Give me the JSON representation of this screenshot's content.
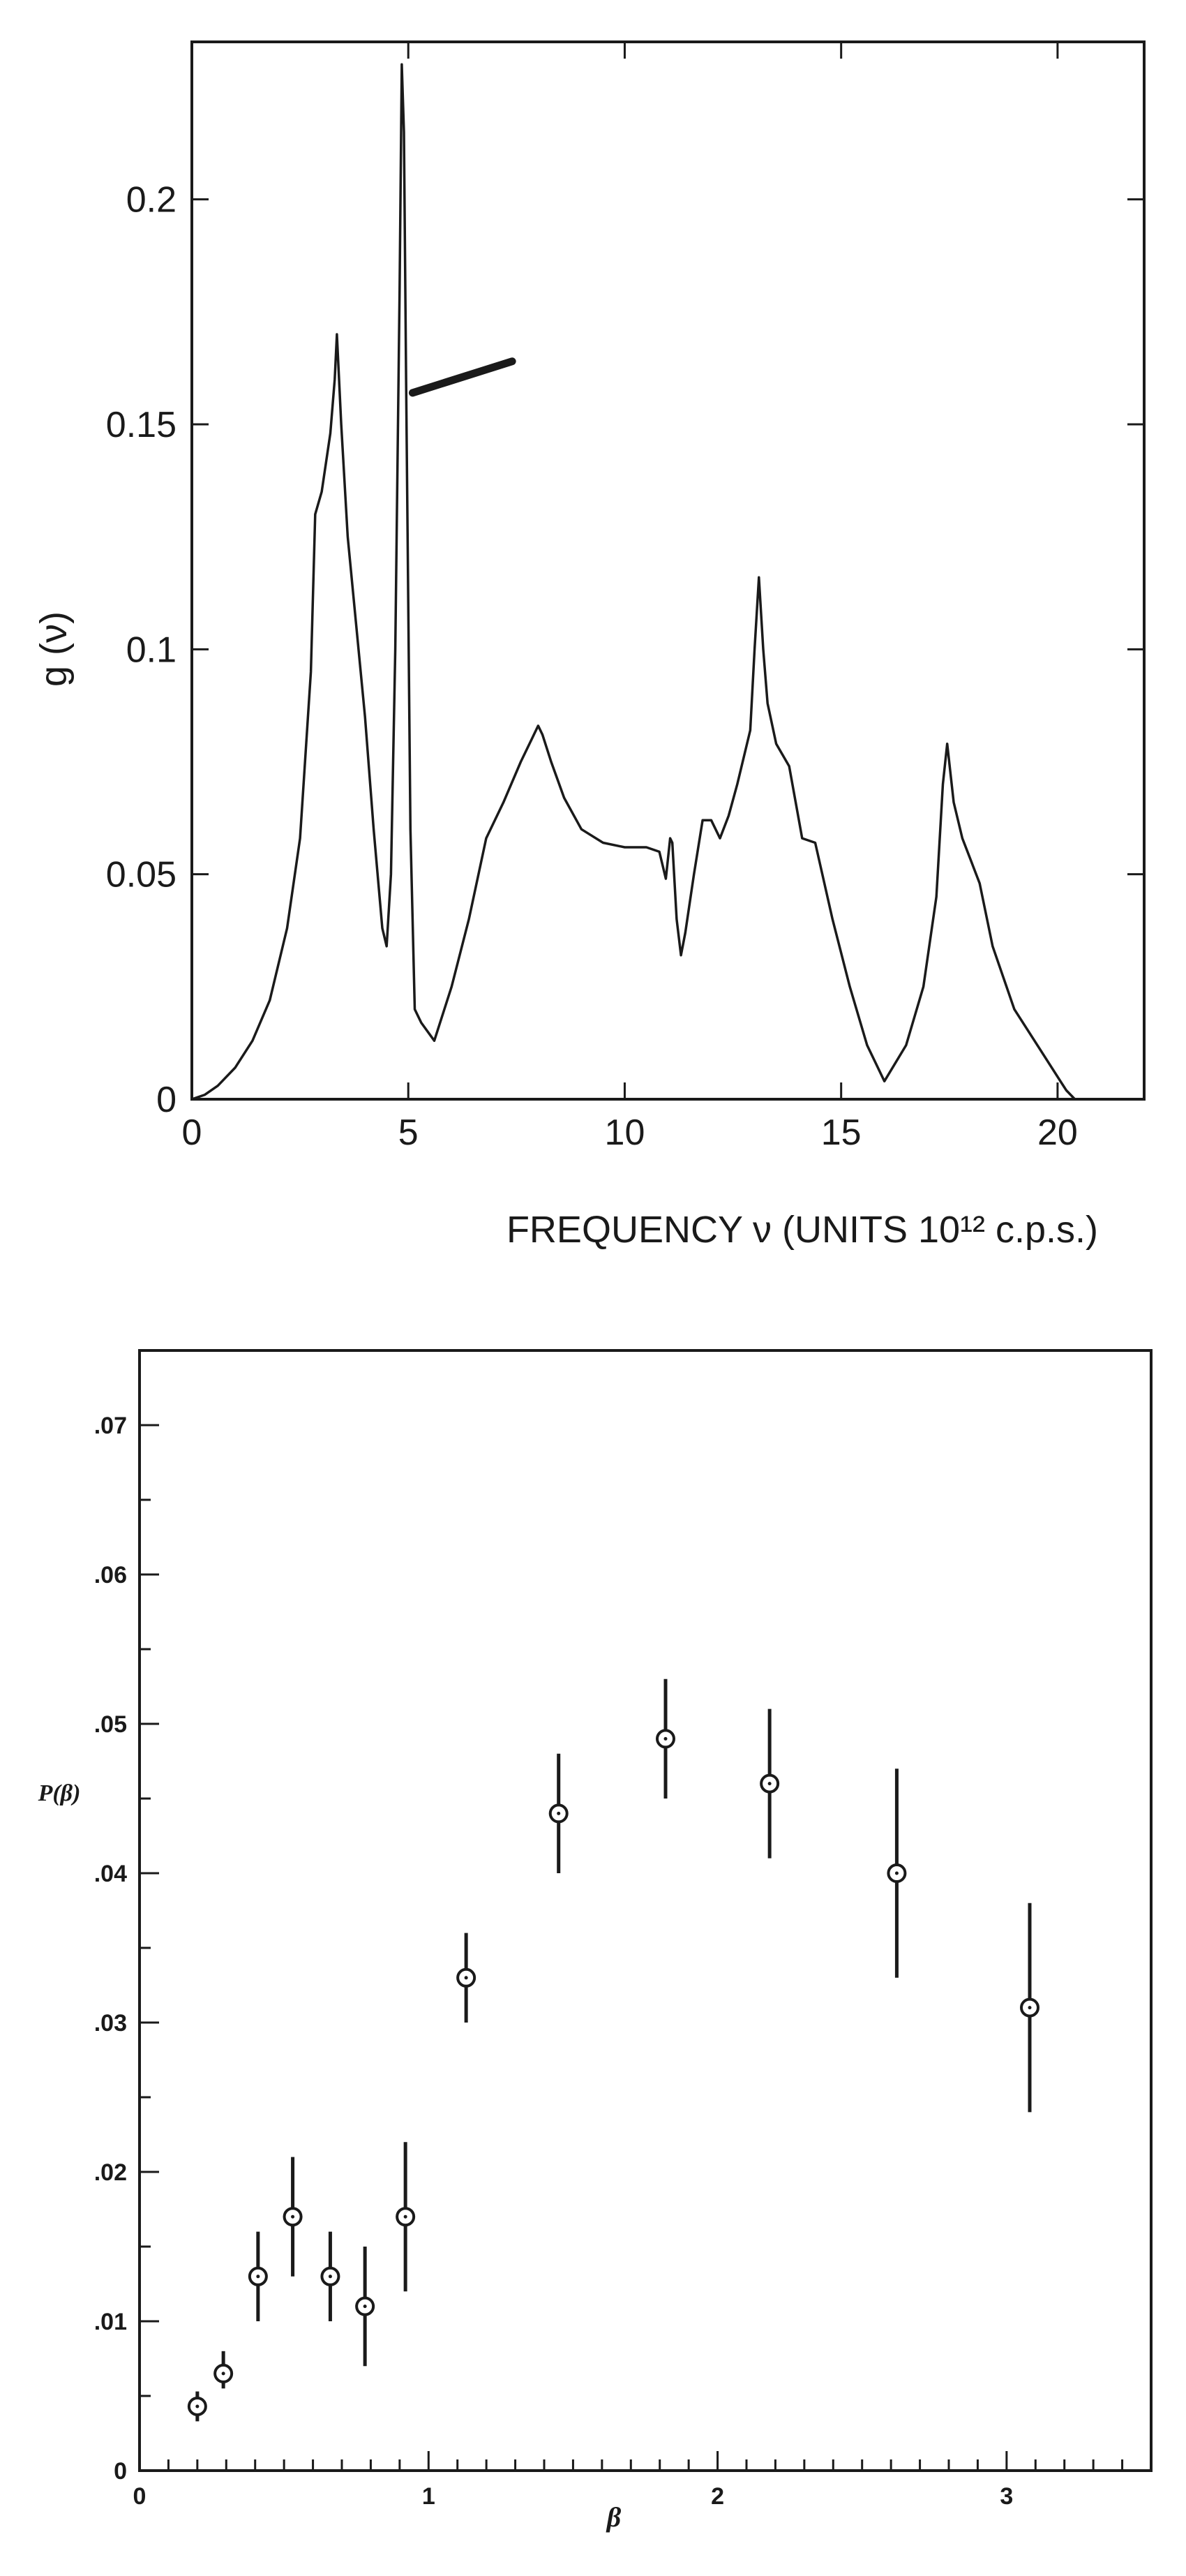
{
  "chart_data": [
    {
      "type": "line",
      "title": "",
      "xlabel": "FREQUENCY ν (UNITS 10¹² c.p.s.)",
      "ylabel": "g (ν)",
      "xlim": [
        0,
        22
      ],
      "ylim": [
        0,
        0.235
      ],
      "x_ticks": [
        "0",
        "5",
        "10",
        "15",
        "20"
      ],
      "y_ticks": [
        "0",
        "0.05",
        "0.1",
        "0.15",
        "0.2"
      ],
      "x_tick_values": [
        0,
        5,
        10,
        15,
        20
      ],
      "y_tick_values": [
        0,
        0.05,
        0.1,
        0.15,
        0.2
      ],
      "grid": false,
      "series": [
        {
          "x": [
            0,
            0.3,
            0.6,
            1.0,
            1.4,
            1.8,
            2.2,
            2.5,
            2.75,
            2.85,
            3.0,
            3.2,
            3.3,
            3.35,
            3.45,
            3.6,
            3.8,
            4.0,
            4.2,
            4.4,
            4.5,
            4.6,
            4.7,
            4.8,
            4.85,
            4.9,
            4.95,
            5.05,
            5.15,
            5.3,
            5.6,
            6.0,
            6.4,
            6.8,
            7.2,
            7.6,
            7.9,
            8.0,
            8.1,
            8.3,
            8.6,
            9.0,
            9.5,
            10.0,
            10.5,
            10.8,
            10.95,
            11.05,
            11.1,
            11.2,
            11.3,
            11.4,
            11.6,
            11.8,
            12.0,
            12.2,
            12.4,
            12.6,
            12.9,
            13.0,
            13.1,
            13.2,
            13.3,
            13.5,
            13.8,
            14.1,
            14.4,
            14.8,
            15.2,
            15.6,
            16.0,
            16.5,
            16.9,
            17.2,
            17.35,
            17.45,
            17.6,
            17.8,
            18.0,
            18.2,
            18.5,
            19.0,
            19.6,
            20.2,
            20.4
          ],
          "y": [
            0,
            0.001,
            0.003,
            0.007,
            0.013,
            0.022,
            0.038,
            0.058,
            0.095,
            0.13,
            0.135,
            0.148,
            0.16,
            0.17,
            0.15,
            0.125,
            0.105,
            0.085,
            0.06,
            0.038,
            0.034,
            0.05,
            0.1,
            0.18,
            0.23,
            0.215,
            0.16,
            0.06,
            0.02,
            0.017,
            0.013,
            0.025,
            0.04,
            0.058,
            0.066,
            0.075,
            0.081,
            0.083,
            0.081,
            0.075,
            0.067,
            0.06,
            0.057,
            0.056,
            0.056,
            0.055,
            0.049,
            0.058,
            0.057,
            0.04,
            0.032,
            0.037,
            0.05,
            0.062,
            0.062,
            0.058,
            0.063,
            0.07,
            0.082,
            0.1,
            0.116,
            0.1,
            0.088,
            0.079,
            0.074,
            0.058,
            0.057,
            0.04,
            0.025,
            0.012,
            0.004,
            0.012,
            0.025,
            0.045,
            0.07,
            0.079,
            0.066,
            0.058,
            0.053,
            0.048,
            0.034,
            0.02,
            0.011,
            0.002,
            0
          ]
        }
      ],
      "annotations": [
        {
          "type": "pointer-bar",
          "from": [
            5.1,
            0.157
          ],
          "to": [
            7.4,
            0.164
          ]
        }
      ]
    },
    {
      "type": "scatter",
      "title": "",
      "xlabel": "β",
      "ylabel": "P(β)",
      "xlim": [
        0,
        3.5
      ],
      "ylim": [
        0,
        0.075
      ],
      "x_ticks": [
        "0",
        "1",
        "2",
        "3"
      ],
      "y_ticks": [
        "0",
        ".01",
        ".02",
        ".03",
        ".04",
        ".05",
        ".06",
        ".07"
      ],
      "x_tick_values": [
        0,
        1,
        2,
        3
      ],
      "y_tick_values": [
        0,
        0.01,
        0.02,
        0.03,
        0.04,
        0.05,
        0.06,
        0.07
      ],
      "x_minor_step": 0.1,
      "y_minor_step": 0.005,
      "grid": false,
      "points": [
        {
          "x": 0.2,
          "y": 0.0043,
          "err_low": 0.0033,
          "err_high": 0.0053
        },
        {
          "x": 0.29,
          "y": 0.0065,
          "err_low": 0.0055,
          "err_high": 0.008
        },
        {
          "x": 0.41,
          "y": 0.013,
          "err_low": 0.01,
          "err_high": 0.016
        },
        {
          "x": 0.53,
          "y": 0.017,
          "err_low": 0.013,
          "err_high": 0.021
        },
        {
          "x": 0.66,
          "y": 0.013,
          "err_low": 0.01,
          "err_high": 0.016
        },
        {
          "x": 0.78,
          "y": 0.011,
          "err_low": 0.007,
          "err_high": 0.015
        },
        {
          "x": 0.92,
          "y": 0.017,
          "err_low": 0.012,
          "err_high": 0.022
        },
        {
          "x": 1.13,
          "y": 0.033,
          "err_low": 0.03,
          "err_high": 0.036
        },
        {
          "x": 1.45,
          "y": 0.044,
          "err_low": 0.04,
          "err_high": 0.048
        },
        {
          "x": 1.82,
          "y": 0.049,
          "err_low": 0.045,
          "err_high": 0.053
        },
        {
          "x": 2.18,
          "y": 0.046,
          "err_low": 0.041,
          "err_high": 0.051
        },
        {
          "x": 2.62,
          "y": 0.04,
          "err_low": 0.033,
          "err_high": 0.047
        },
        {
          "x": 3.08,
          "y": 0.031,
          "err_low": 0.024,
          "err_high": 0.038
        }
      ]
    }
  ]
}
